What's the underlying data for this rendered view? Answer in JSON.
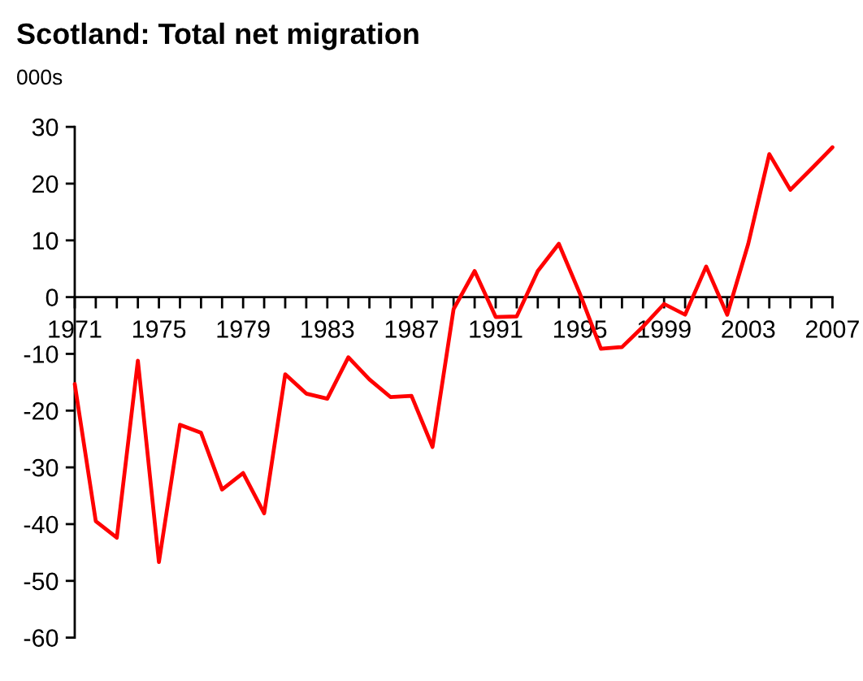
{
  "chart_data": {
    "type": "line",
    "title": "Scotland: Total net migration",
    "ylabel": "000s",
    "x": [
      1971,
      1972,
      1973,
      1974,
      1975,
      1976,
      1977,
      1978,
      1979,
      1980,
      1981,
      1982,
      1983,
      1984,
      1985,
      1986,
      1987,
      1988,
      1989,
      1990,
      1991,
      1992,
      1993,
      1994,
      1995,
      1996,
      1997,
      1998,
      1999,
      2000,
      2001,
      2002,
      2003,
      2004,
      2005,
      2006,
      2007
    ],
    "series": [
      {
        "color": "#ff0000",
        "values": [
          -15.3,
          -39.5,
          -42.4,
          -11.2,
          -46.7,
          -22.5,
          -23.9,
          -33.9,
          -31.0,
          -38.1,
          -13.6,
          -17.0,
          -17.9,
          -10.6,
          -14.5,
          -17.6,
          -17.4,
          -26.4,
          -2.1,
          4.6,
          -3.5,
          -3.4,
          4.6,
          9.4,
          0.6,
          -9.1,
          -8.8,
          -5.2,
          -1.2,
          -3.1,
          5.4,
          -3.1,
          9.4,
          25.2,
          18.9,
          22.6,
          26.4
        ]
      }
    ],
    "xlim": [
      1971,
      2007
    ],
    "xticks": [
      1971,
      {
        "value": 1972,
        "label": null
      },
      {
        "value": 1973,
        "label": null
      },
      {
        "value": 1974,
        "label": null
      },
      1975,
      {
        "value": 1976,
        "label": null
      },
      {
        "value": 1977,
        "label": null
      },
      {
        "value": 1978,
        "label": null
      },
      1979,
      {
        "value": 1980,
        "label": null
      },
      {
        "value": 1981,
        "label": null
      },
      {
        "value": 1982,
        "label": null
      },
      1983,
      {
        "value": 1984,
        "label": null
      },
      {
        "value": 1985,
        "label": null
      },
      {
        "value": 1986,
        "label": null
      },
      1987,
      {
        "value": 1988,
        "label": null
      },
      {
        "value": 1989,
        "label": null
      },
      {
        "value": 1990,
        "label": null
      },
      1991,
      {
        "value": 1992,
        "label": null
      },
      {
        "value": 1993,
        "label": null
      },
      {
        "value": 1994,
        "label": null
      },
      1995,
      {
        "value": 1996,
        "label": null
      },
      {
        "value": 1997,
        "label": null
      },
      {
        "value": 1998,
        "label": null
      },
      1999,
      {
        "value": 2000,
        "label": null
      },
      {
        "value": 2001,
        "label": null
      },
      {
        "value": 2002,
        "label": null
      },
      2003,
      {
        "value": 2004,
        "label": null
      },
      {
        "value": 2005,
        "label": null
      },
      {
        "value": 2006,
        "label": null
      },
      2007
    ],
    "ylim": [
      -60,
      30
    ],
    "yticks": [
      -60,
      -50,
      -40,
      -30,
      -20,
      -10,
      0,
      10,
      20,
      30
    ],
    "line_style": "solid",
    "marker": "none"
  }
}
